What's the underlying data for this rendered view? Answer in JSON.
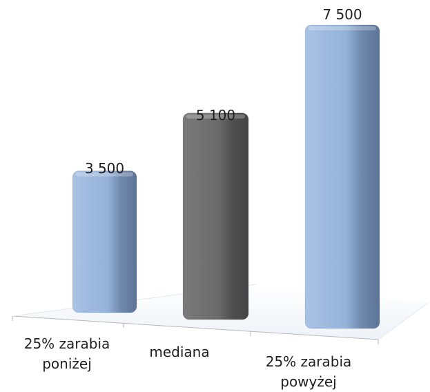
{
  "chart_data": {
    "type": "bar",
    "categories": [
      "25% zarabia\nponiżej",
      "mediana",
      "25% zarabia\npowyżej"
    ],
    "values": [
      3500,
      5100,
      7500
    ],
    "value_labels": [
      "3 500",
      "5 100",
      "7 500"
    ],
    "ylim": [
      0,
      7500
    ],
    "grid": false,
    "legend": "none",
    "colors": {
      "blue": "#95b3d7",
      "gray": "#6e6e6e"
    },
    "bar_colors": [
      "blue",
      "gray",
      "blue"
    ]
  }
}
